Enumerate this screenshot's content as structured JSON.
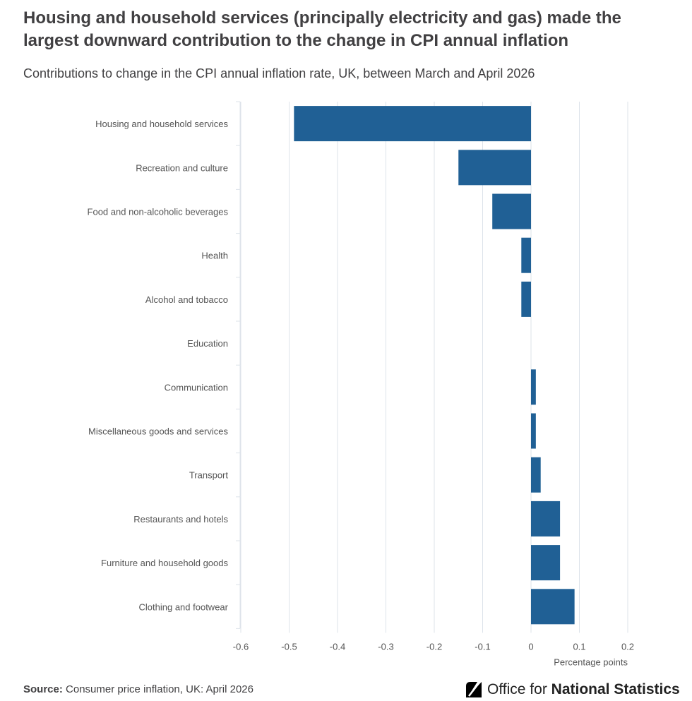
{
  "title": "Housing and household services (principally electricity and gas) made the largest downward contribution to the change in CPI annual inflation",
  "subtitle": "Contributions to change in the CPI annual inflation rate, UK, between March and April 2026",
  "source": {
    "label": "Source:",
    "text": "Consumer price inflation, UK: April 2026"
  },
  "logo": {
    "text_regular": "Office for",
    "text_bold": "National Statistics"
  },
  "colors": {
    "bar": "#206095",
    "grid": "#dde3ea",
    "text": "#414042"
  },
  "chart_data": {
    "type": "bar",
    "orientation": "horizontal",
    "categories": [
      "Housing and household services",
      "Recreation and culture",
      "Food and non-alcoholic beverages",
      "Health",
      "Alcohol and tobacco",
      "Education",
      "Communication",
      "Miscellaneous goods and services",
      "Transport",
      "Restaurants and hotels",
      "Furniture and household goods",
      "Clothing and footwear"
    ],
    "values": [
      -0.49,
      -0.15,
      -0.08,
      -0.02,
      -0.02,
      0.0,
      0.01,
      0.01,
      0.02,
      0.06,
      0.06,
      0.09
    ],
    "xlim": [
      -0.6,
      0.2
    ],
    "xticks": [
      -0.6,
      -0.5,
      -0.4,
      -0.3,
      -0.2,
      -0.1,
      0,
      0.1,
      0.2
    ],
    "xlabel": "Percentage points",
    "ylabel": "",
    "grid": true
  }
}
